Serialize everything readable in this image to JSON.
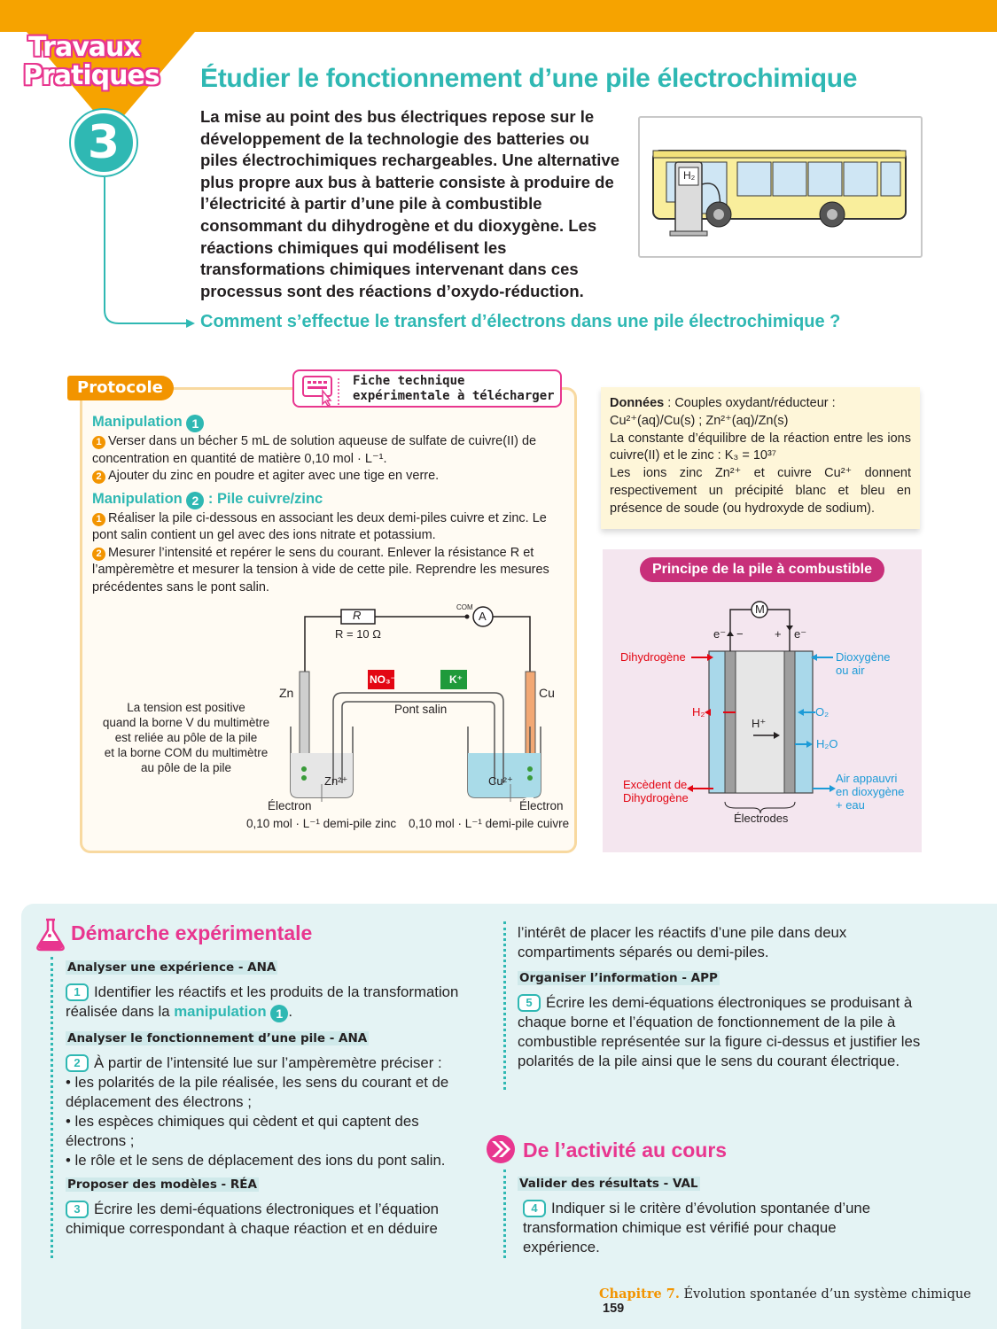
{
  "header": {
    "series_line1": "Travaux",
    "series_line2": "Pratiques",
    "number": "3"
  },
  "title": "Étudier le fonctionnement d’une pile électrochimique",
  "intro": "La mise au point des bus électriques repose sur le développement de la technologie des batteries ou piles électrochimiques rechargeables. Une alternative plus propre aux bus à batterie consiste à produire de l’électricité à partir d’une pile à combustible consommant du dihydrogène et du dioxygène. Les réactions chimiques qui modélisent les transformations chimiques intervenant dans ces processus sont des réactions d’oxydo-réduction.",
  "bus_label": "H₂",
  "question": "Comment s’effectue le transfert d’électrons dans une pile électrochimique ?",
  "protocol": {
    "label": "Protocole",
    "fiche_line1": "Fiche technique",
    "fiche_line2": "expérimentale à télécharger",
    "m1_title": "Manipulation",
    "m1_num": "1",
    "m1_s1": "Verser dans un bécher 5 mL de solution aqueuse de sulfate de cuivre(II) de concentration en quantité de matière 0,10 mol · L⁻¹.",
    "m1_s2": "Ajouter du zinc en poudre et agiter avec une tige en verre.",
    "m2_title": "Manipulation",
    "m2_num": "2",
    "m2_suffix": " : Pile cuivre/zinc",
    "m2_s1": "Réaliser la pile ci-dessous en associant les deux demi-piles cuivre et zinc. Le pont salin contient un gel avec des ions nitrate et potassium.",
    "m2_s2": "Mesurer l’intensité et repérer le sens du courant. Enlever la résistance R et l’ampèremètre et mesurer la tension à vide de cette pile. Reprendre les mesures précédentes sans le pont salin.",
    "step1": "1",
    "step2": "2"
  },
  "circuit": {
    "resistor": "R",
    "resistor_value": "R = 10 Ω",
    "com": "COM",
    "ammeter": "A",
    "zn": "Zn",
    "cu": "Cu",
    "no3": "NO₃⁻",
    "k": "K⁺",
    "pont": "Pont salin",
    "zn_ion": "Zn²⁺",
    "cu_ion": "Cu²⁺",
    "electron_left": "Électron",
    "electron_right": "Électron",
    "note1": "La tension est positive",
    "note2": "quand la borne V du multimètre",
    "note3": "est reliée au pôle de la pile",
    "note4": "et la borne COM du multimètre",
    "note5": "au pôle de la pile",
    "sol_left": "0,10 mol · L⁻¹ demi-pile zinc",
    "sol_right": "0,10 mol · L⁻¹ demi-pile cuivre"
  },
  "donnees": {
    "label": "Données",
    "line1": " : Couples oxydant/réducteur :",
    "line2": "Cu²⁺(aq)/Cu(s) ; Zn²⁺(aq)/Zn(s)",
    "line3": "La constante d’équilibre de la réaction entre les ions cuivre(II) et le zinc : K₃ = 10³⁷",
    "line4": "Les ions zinc Zn²⁺ et cuivre Cu²⁺ donnent respectivement un précipité blanc et bleu en présence de soude (ou hydroxyde de sodium)."
  },
  "principe": {
    "title": "Principe de la pile à combustible",
    "motor": "M",
    "e_left": "e⁻",
    "minus": "−",
    "plus": "+",
    "e_right": "e⁻",
    "dihydrogene": "Dihydrogène",
    "h2": "H₂",
    "excedent1": "Excèdent de",
    "excedent2": "dihydrogène",
    "hplus": "H⁺",
    "dioxygene1": "Dioxygène",
    "dioxygene2": "ou air",
    "o2": "O₂",
    "h2o": "H₂O",
    "air1": "Air appauvri",
    "air2": "en dioxygène",
    "air3": "+ eau",
    "electrodes": "Électrodes"
  },
  "demarche": {
    "title": "Démarche expérimentale",
    "skill1": "Analyser une expérience - ANA",
    "q1_num": "1",
    "q1": "Identifier les réactifs et les produits de la transformation réalisée dans la",
    "q1_link": "manipulation",
    "q1_badge": "1",
    "skill2": "Analyser le fonctionnement d’une pile - ANA",
    "q2_num": "2",
    "q2": "À partir de l’intensité lue sur l’ampèremètre préciser :",
    "q2_b1": "• les polarités de la pile réalisée, les sens du courant et de déplacement des électrons ;",
    "q2_b2": "• les espèces chimiques qui cèdent et qui captent des électrons ;",
    "q2_b3": "• le rôle et le sens de déplacement des ions du pont salin.",
    "skill3": "Proposer des modèles - RÉA",
    "q3_num": "3",
    "q3": "Écrire les demi-équations électroniques et l’équation chimique correspondant à chaque réaction et en déduire",
    "q3_cont": "l’intérêt de placer les réactifs d’une pile dans deux compartiments séparés ou demi-piles.",
    "skill4": "Organiser l’information - APP",
    "q5_num": "5",
    "q5": "Écrire les demi-équations électroniques se produisant à chaque borne et l’équation de fonctionnement de la pile à combustible représentée sur la figure ci-dessus et justifier les polarités de la pile ainsi que le sens du courant électrique."
  },
  "activite": {
    "title": "De l’activité au cours",
    "skill": "Valider des résultats - VAL",
    "q4_num": "4",
    "q4": "Indiquer si le critère d’évolution spontanée d’une transformation chimique est vérifié pour chaque expérience."
  },
  "footer": {
    "chapter": "Chapitre 7.",
    "chapter_title": "Évolution spontanée d’un système chimique",
    "page": "159"
  },
  "colors": {
    "teal": "#2fb8b3",
    "orange": "#f6a300",
    "pink": "#e8368f",
    "magenta": "#c8307a"
  }
}
